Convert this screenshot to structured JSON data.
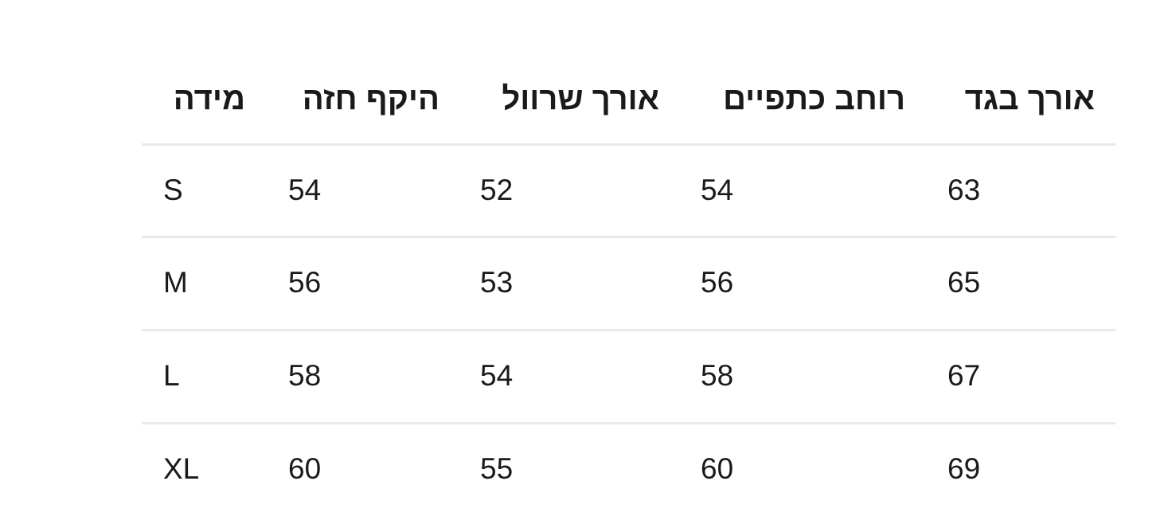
{
  "table": {
    "headers": [
      "מידה",
      "היקף חזה",
      "אורך שרוול",
      "רוחב כתפיים",
      "אורך בגד"
    ],
    "rows": [
      [
        "S",
        "54",
        "52",
        "54",
        "63"
      ],
      [
        "M",
        "56",
        "53",
        "56",
        "65"
      ],
      [
        "L",
        "58",
        "54",
        "58",
        "67"
      ],
      [
        "XL",
        "60",
        "55",
        "60",
        "69"
      ]
    ]
  }
}
